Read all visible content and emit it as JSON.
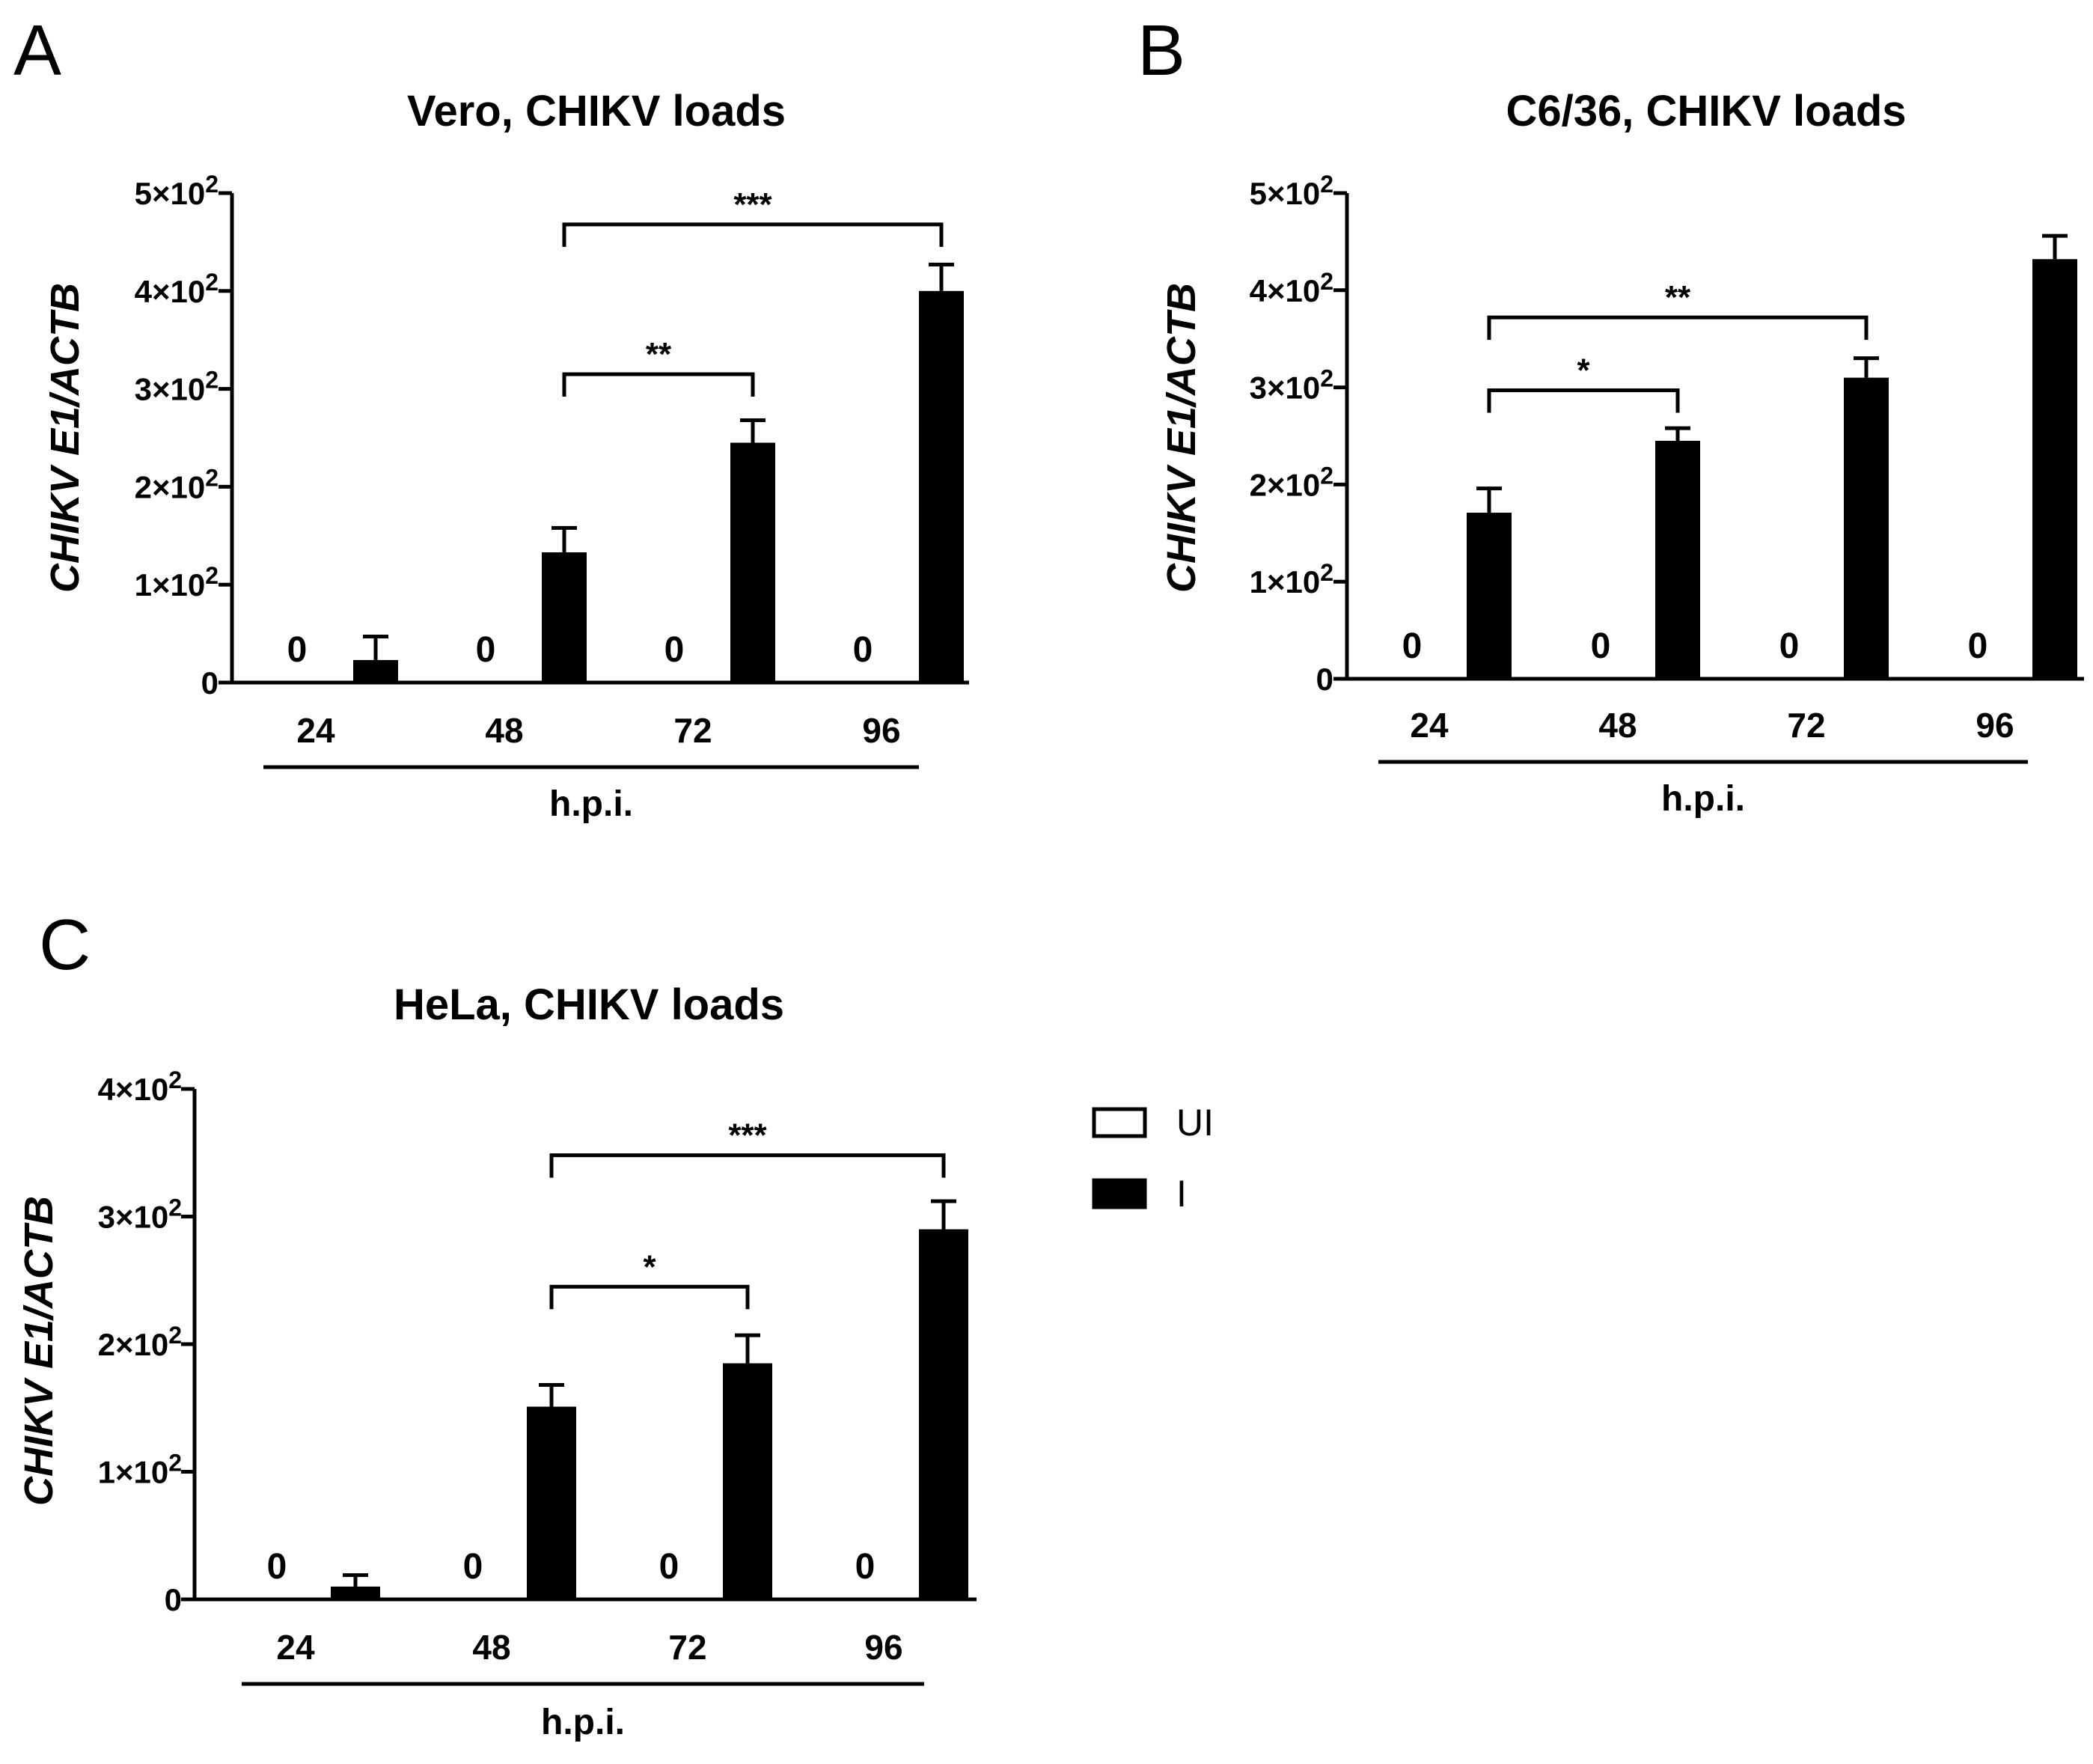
{
  "chart_data": [
    {
      "panel_letter": "A",
      "type": "bar",
      "title": "Vero, CHIKV loads",
      "xlabel": "h.p.i.",
      "ylabel_italic": "CHIKV E1",
      "ylabel_plain": "/",
      "ylabel_italic2": "ACTB",
      "ylim": [
        0,
        500
      ],
      "yticks": [
        {
          "value": 0,
          "label": "0",
          "exp": ""
        },
        {
          "value": 100,
          "label": "1×10",
          "exp": "2"
        },
        {
          "value": 200,
          "label": "2×10",
          "exp": "2"
        },
        {
          "value": 300,
          "label": "3×10",
          "exp": "2"
        },
        {
          "value": 400,
          "label": "4×10",
          "exp": "2"
        },
        {
          "value": 500,
          "label": "5×10",
          "exp": "2"
        }
      ],
      "categories": [
        "24",
        "48",
        "72",
        "96"
      ],
      "series": [
        {
          "name": "UI",
          "values": [
            0,
            0,
            0,
            0
          ],
          "errors": [
            0,
            0,
            0,
            0
          ],
          "value_labels": [
            "0",
            "0",
            "0",
            "0"
          ]
        },
        {
          "name": "I",
          "values": [
            23,
            133,
            245,
            400
          ],
          "errors": [
            24,
            25,
            23,
            27
          ]
        }
      ],
      "significance": [
        {
          "from": 1,
          "to": 2,
          "y": 315,
          "label": "**"
        },
        {
          "from": 1,
          "to": 3,
          "y": 468,
          "label": "***"
        }
      ]
    },
    {
      "panel_letter": "B",
      "type": "bar",
      "title": "C6/36, CHIKV loads",
      "xlabel": "h.p.i.",
      "ylabel_italic": "CHIKV E1",
      "ylabel_plain": "/",
      "ylabel_italic2": "ACTB",
      "ylim": [
        0,
        500
      ],
      "yticks": [
        {
          "value": 0,
          "label": "0",
          "exp": ""
        },
        {
          "value": 100,
          "label": "1×10",
          "exp": "2"
        },
        {
          "value": 200,
          "label": "2×10",
          "exp": "2"
        },
        {
          "value": 300,
          "label": "3×10",
          "exp": "2"
        },
        {
          "value": 400,
          "label": "4×10",
          "exp": "2"
        },
        {
          "value": 500,
          "label": "5×10",
          "exp": "2"
        }
      ],
      "categories": [
        "24",
        "48",
        "72",
        "96"
      ],
      "series": [
        {
          "name": "UI",
          "values": [
            0,
            0,
            0,
            0
          ],
          "errors": [
            0,
            0,
            0,
            0
          ],
          "value_labels": [
            "0",
            "0",
            "0",
            "0"
          ]
        },
        {
          "name": "I",
          "values": [
            171,
            245,
            310,
            432
          ],
          "errors": [
            25,
            13,
            20,
            24
          ]
        }
      ],
      "significance": [
        {
          "from": 0,
          "to": 1,
          "y": 297,
          "label": "*"
        },
        {
          "from": 0,
          "to": 2,
          "y": 372,
          "label": "**"
        }
      ]
    },
    {
      "panel_letter": "C",
      "type": "bar",
      "title": "HeLa, CHIKV loads",
      "xlabel": "h.p.i.",
      "ylabel_italic": "CHIKV E1",
      "ylabel_plain": "/",
      "ylabel_italic2": "ACTB",
      "ylim": [
        0,
        400
      ],
      "yticks": [
        {
          "value": 0,
          "label": "0",
          "exp": ""
        },
        {
          "value": 100,
          "label": "1×10",
          "exp": "2"
        },
        {
          "value": 200,
          "label": "2×10",
          "exp": "2"
        },
        {
          "value": 300,
          "label": "3×10",
          "exp": "2"
        },
        {
          "value": 400,
          "label": "4×10",
          "exp": "2"
        }
      ],
      "categories": [
        "24",
        "48",
        "72",
        "96"
      ],
      "series": [
        {
          "name": "UI",
          "values": [
            0,
            0,
            0,
            0
          ],
          "errors": [
            0,
            0,
            0,
            0
          ],
          "value_labels": [
            "0",
            "0",
            "0",
            "0"
          ]
        },
        {
          "name": "I",
          "values": [
            10,
            151,
            185,
            290
          ],
          "errors": [
            9,
            17,
            22,
            22
          ]
        }
      ],
      "significance": [
        {
          "from": 1,
          "to": 2,
          "y": 245,
          "label": "*"
        },
        {
          "from": 1,
          "to": 3,
          "y": 348,
          "label": "***"
        }
      ]
    }
  ],
  "legend": [
    {
      "name": "UI",
      "fill": "#ffffff"
    },
    {
      "name": "I",
      "fill": "#000000"
    }
  ],
  "colors": {
    "ink": "#000000",
    "background": "#ffffff"
  }
}
